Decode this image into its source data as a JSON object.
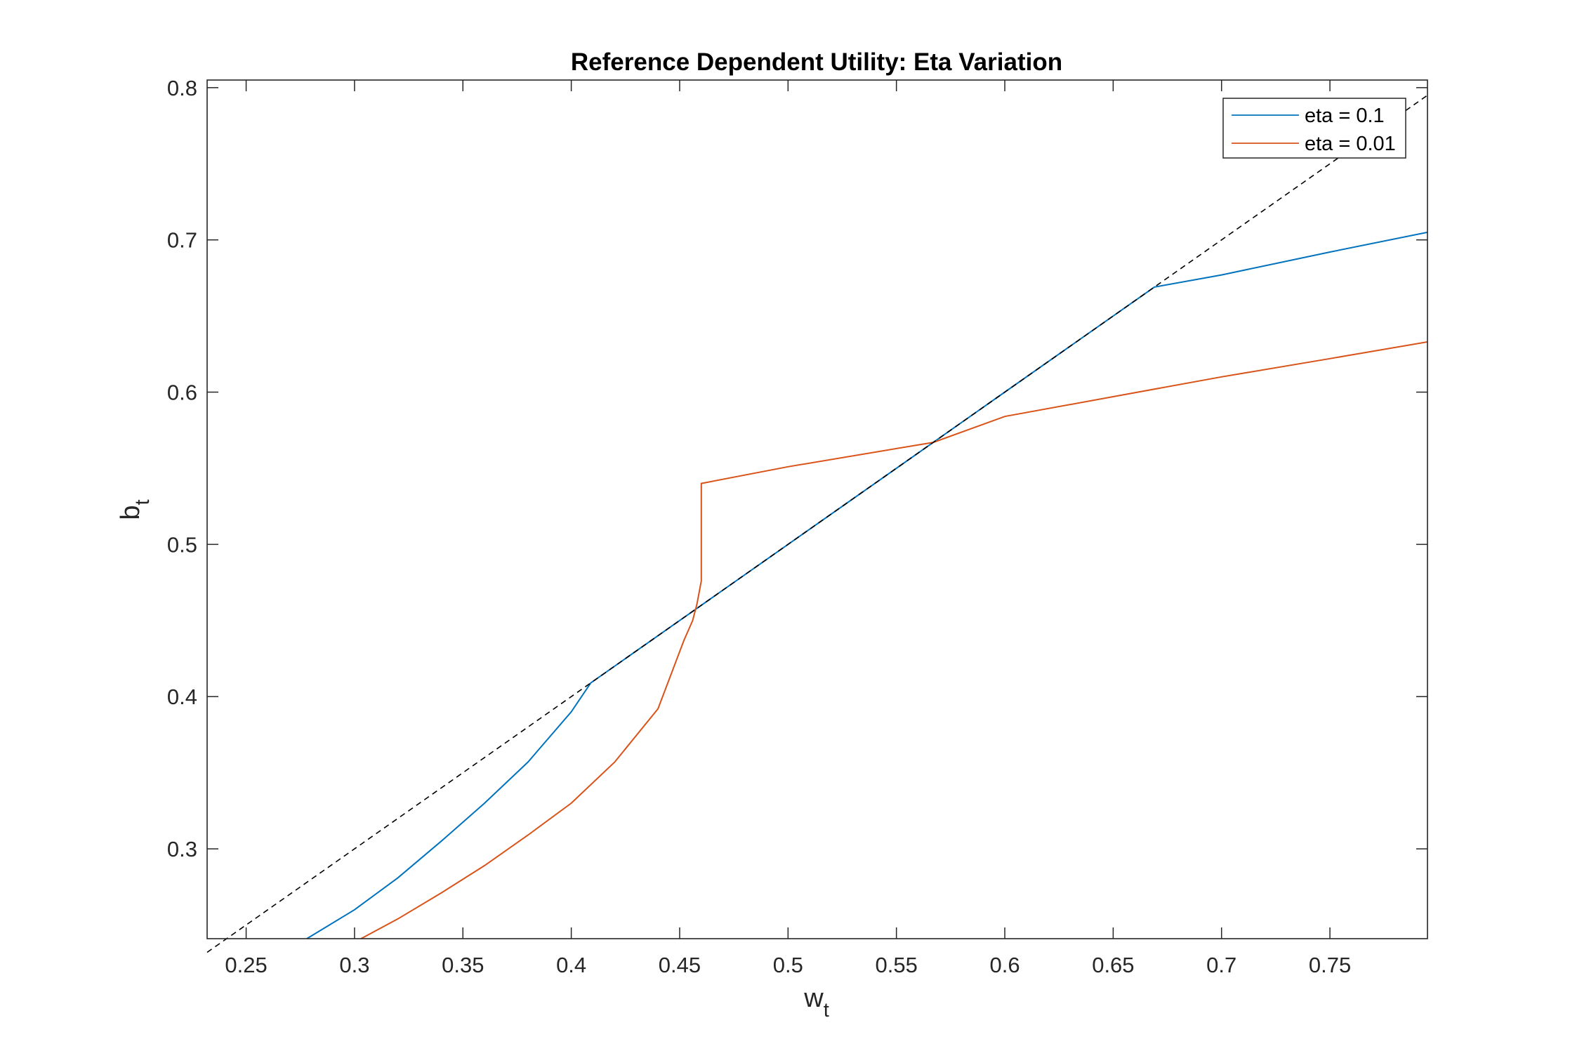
{
  "chart_data": {
    "type": "line",
    "title": "Reference Dependent Utility: Eta Variation",
    "xlabel": {
      "base": "w",
      "subscript": "t"
    },
    "ylabel": {
      "base": "b",
      "subscript": "t"
    },
    "xlim": [
      0.232,
      0.795
    ],
    "ylim": [
      0.241,
      0.805
    ],
    "xticks": [
      0.25,
      0.3,
      0.35,
      0.4,
      0.45,
      0.5,
      0.55,
      0.6,
      0.65,
      0.7,
      0.75
    ],
    "xtick_labels": [
      "0.25",
      "0.3",
      "0.35",
      "0.4",
      "0.45",
      "0.5",
      "0.55",
      "0.6",
      "0.65",
      "0.7",
      "0.75"
    ],
    "yticks": [
      0.3,
      0.4,
      0.5,
      0.6,
      0.7,
      0.8
    ],
    "ytick_labels": [
      "0.3",
      "0.4",
      "0.5",
      "0.6",
      "0.7",
      "0.8"
    ],
    "grid": false,
    "legend_position": "top-right",
    "series": [
      {
        "name": "eta = 0.1",
        "color": "#0072BD",
        "style": "solid",
        "x": [
          0.278,
          0.3,
          0.32,
          0.34,
          0.36,
          0.38,
          0.4,
          0.409,
          0.45,
          0.5,
          0.55,
          0.6,
          0.669,
          0.7,
          0.75,
          0.795
        ],
        "y": [
          0.241,
          0.26,
          0.281,
          0.305,
          0.33,
          0.357,
          0.39,
          0.409,
          0.45,
          0.5,
          0.55,
          0.6,
          0.669,
          0.677,
          0.692,
          0.705
        ]
      },
      {
        "name": "eta = 0.01",
        "color": "#D95319",
        "style": "solid",
        "x": [
          0.303,
          0.32,
          0.34,
          0.36,
          0.38,
          0.4,
          0.42,
          0.44,
          0.452,
          0.456,
          0.458,
          0.46,
          0.46,
          0.5,
          0.567,
          0.6,
          0.65,
          0.7,
          0.75,
          0.795
        ],
        "y": [
          0.241,
          0.254,
          0.271,
          0.289,
          0.309,
          0.33,
          0.357,
          0.392,
          0.437,
          0.45,
          0.461,
          0.476,
          0.54,
          0.551,
          0.567,
          0.584,
          0.597,
          0.61,
          0.622,
          0.633
        ]
      },
      {
        "name": "",
        "color": "#000000",
        "style": "dashed",
        "x": [
          0.232,
          0.795
        ],
        "y": [
          0.232,
          0.795
        ]
      }
    ]
  }
}
